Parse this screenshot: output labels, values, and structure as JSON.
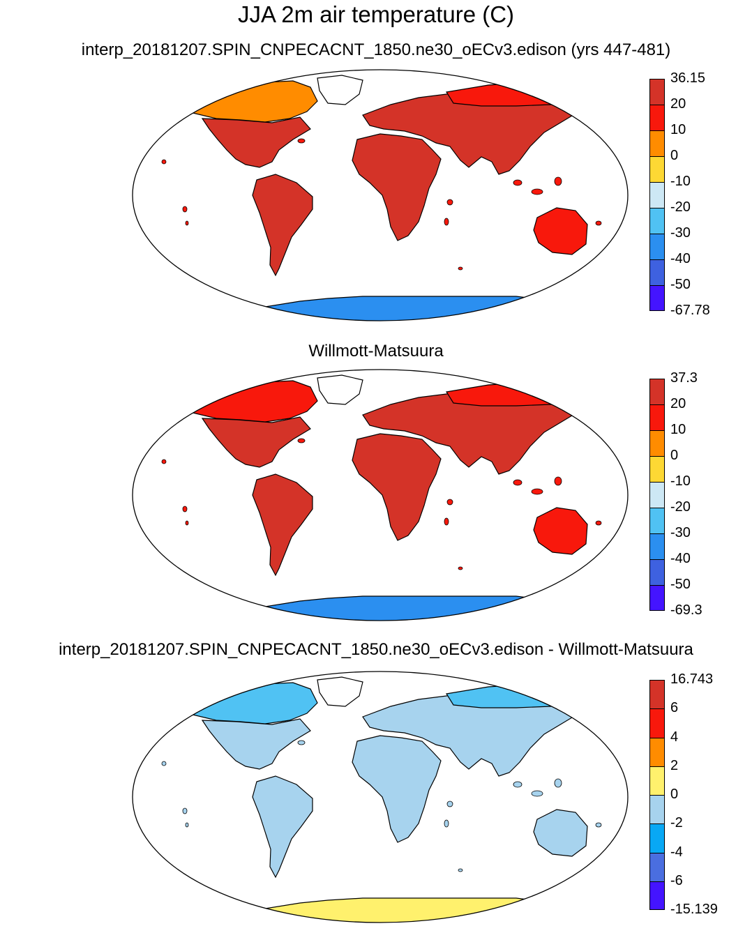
{
  "title": "JJA 2m air temperature (C)",
  "panels": [
    {
      "title": "interp_20181207.SPIN_CNPECACNT_1850.ne30_oECv3.edison (yrs 447-481)",
      "colorbar": {
        "labels": [
          "36.15",
          "20",
          "10",
          "0",
          "-10",
          "-20",
          "-30",
          "-40",
          "-50",
          "-67.78"
        ],
        "colors": [
          "#d43328",
          "#f8180c",
          "#ff8c00",
          "#fdd834",
          "#cde8f5",
          "#50c2f3",
          "#2b8ff0",
          "#3e61e0",
          "#4414ff"
        ]
      }
    },
    {
      "title": "Willmott-Matsuura",
      "colorbar": {
        "labels": [
          "37.3",
          "20",
          "10",
          "0",
          "-10",
          "-20",
          "-30",
          "-40",
          "-50",
          "-69.3"
        ],
        "colors": [
          "#d43328",
          "#f8180c",
          "#ff8c00",
          "#fdd834",
          "#cde8f5",
          "#50c2f3",
          "#2b8ff0",
          "#3e61e0",
          "#4414ff"
        ]
      }
    },
    {
      "title": "interp_20181207.SPIN_CNPECACNT_1850.ne30_oECv3.edison - Willmott-Matsuura",
      "colorbar": {
        "labels": [
          "16.743",
          "6",
          "4",
          "2",
          "0",
          "-2",
          "-4",
          "-6",
          "-15.139"
        ],
        "colors": [
          "#d43328",
          "#f8180c",
          "#ff8c00",
          "#fff16d",
          "#a7d3ee",
          "#08a8f5",
          "#4a6ee0",
          "#4414ff"
        ]
      }
    }
  ],
  "map_fills": {
    "panel1": {
      "north_america": "#d43328",
      "canada": "#ff8c00",
      "greenland": "#ffffff",
      "south_america": "#d43328",
      "africa": "#d43328",
      "eurasia": "#d43328",
      "siberia": "#f8180c",
      "australia": "#f8180c",
      "antarctica": "#2b8ff0"
    },
    "panel2": {
      "north_america": "#d43328",
      "canada": "#f8180c",
      "greenland": "#ffffff",
      "south_america": "#d43328",
      "africa": "#d43328",
      "eurasia": "#d43328",
      "siberia": "#f8180c",
      "australia": "#f8180c",
      "antarctica": "#2b8ff0"
    },
    "panel3": {
      "north_america": "#a7d3ee",
      "canada": "#50c2f3",
      "greenland": "#ffffff",
      "south_america": "#a7d3ee",
      "africa": "#a7d3ee",
      "eurasia": "#a7d3ee",
      "siberia": "#50c2f3",
      "australia": "#a7d3ee",
      "antarctica": "#fff16d"
    }
  }
}
